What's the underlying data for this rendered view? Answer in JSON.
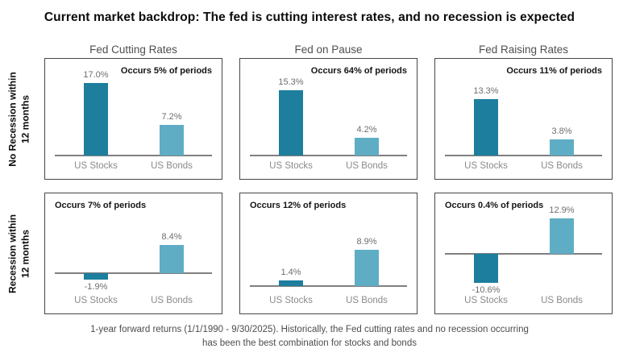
{
  "title": "Current market backdrop: The fed is cutting interest rates, and no recession is expected",
  "columns": [
    "Fed Cutting Rates",
    "Fed on Pause",
    "Fed Raising Rates"
  ],
  "rows": [
    {
      "label_line1": "No Recession within",
      "label_line2": "12 months"
    },
    {
      "label_line1": "Recession within",
      "label_line2": "12 months"
    }
  ],
  "footer": {
    "line1": "1-year forward returns (1/1/1990 - 9/30/2025). Historically, the Fed cutting rates and no recession occurring",
    "line2": "has been the best combination for stocks and bonds"
  },
  "colors": {
    "us_stocks_bar": "#1d7e9e",
    "us_bonds_bar": "#5fadc5",
    "axis": "#7f7f7f",
    "value_label": "#6e6e6e",
    "category_label": "#8a8a8a",
    "occurs_text": "#141414",
    "panel_border": "#474747"
  },
  "chart_data": [
    {
      "type": "bar",
      "title": "Fed Cutting Rates",
      "condition": "No Recession within 12 months",
      "categories": [
        "US Stocks",
        "US Bonds"
      ],
      "values": [
        17.0,
        7.2
      ],
      "data_labels": [
        "17.0%",
        "7.2%"
      ],
      "annotation": "Occurs 5% of periods",
      "ylim": [
        0,
        22.7
      ],
      "grid": false,
      "legend": false
    },
    {
      "type": "bar",
      "title": "Fed on Pause",
      "condition": "No Recession within 12 months",
      "categories": [
        "US Stocks",
        "US Bonds"
      ],
      "values": [
        15.3,
        4.2
      ],
      "data_labels": [
        "15.3%",
        "4.2%"
      ],
      "annotation": "Occurs 64% of periods",
      "ylim": [
        0,
        22.7
      ],
      "grid": false,
      "legend": false
    },
    {
      "type": "bar",
      "title": "Fed Raising Rates",
      "condition": "No Recession within 12 months",
      "categories": [
        "US Stocks",
        "US Bonds"
      ],
      "values": [
        13.3,
        3.8
      ],
      "data_labels": [
        "13.3%",
        "3.8%"
      ],
      "annotation": "Occurs 11% of periods",
      "ylim": [
        0,
        22.7
      ],
      "grid": false,
      "legend": false
    },
    {
      "type": "bar",
      "title": "Fed Cutting Rates",
      "condition": "Recession within 12 months",
      "categories": [
        "US Stocks",
        "US Bonds"
      ],
      "values": [
        -1.9,
        8.4
      ],
      "data_labels": [
        "-1.9%",
        "8.4%"
      ],
      "annotation": "Occurs 7% of periods",
      "ylim": [
        -5,
        23.5
      ],
      "grid": false,
      "legend": false
    },
    {
      "type": "bar",
      "title": "Fed on Pause",
      "condition": "Recession within 12 months",
      "categories": [
        "US Stocks",
        "US Bonds"
      ],
      "values": [
        1.4,
        8.9
      ],
      "data_labels": [
        "1.4%",
        "8.9%"
      ],
      "annotation": "Occurs 12% of periods",
      "ylim": [
        -1,
        23
      ],
      "grid": false,
      "legend": false
    },
    {
      "type": "bar",
      "title": "Fed Raising Rates",
      "condition": "Recession within 12 months",
      "categories": [
        "US Stocks",
        "US Bonds"
      ],
      "values": [
        -10.6,
        12.9
      ],
      "data_labels": [
        "-10.6%",
        "12.9%"
      ],
      "annotation": "Occurs 0.4% of periods",
      "ylim": [
        -13,
        22
      ],
      "grid": false,
      "legend": false
    }
  ]
}
